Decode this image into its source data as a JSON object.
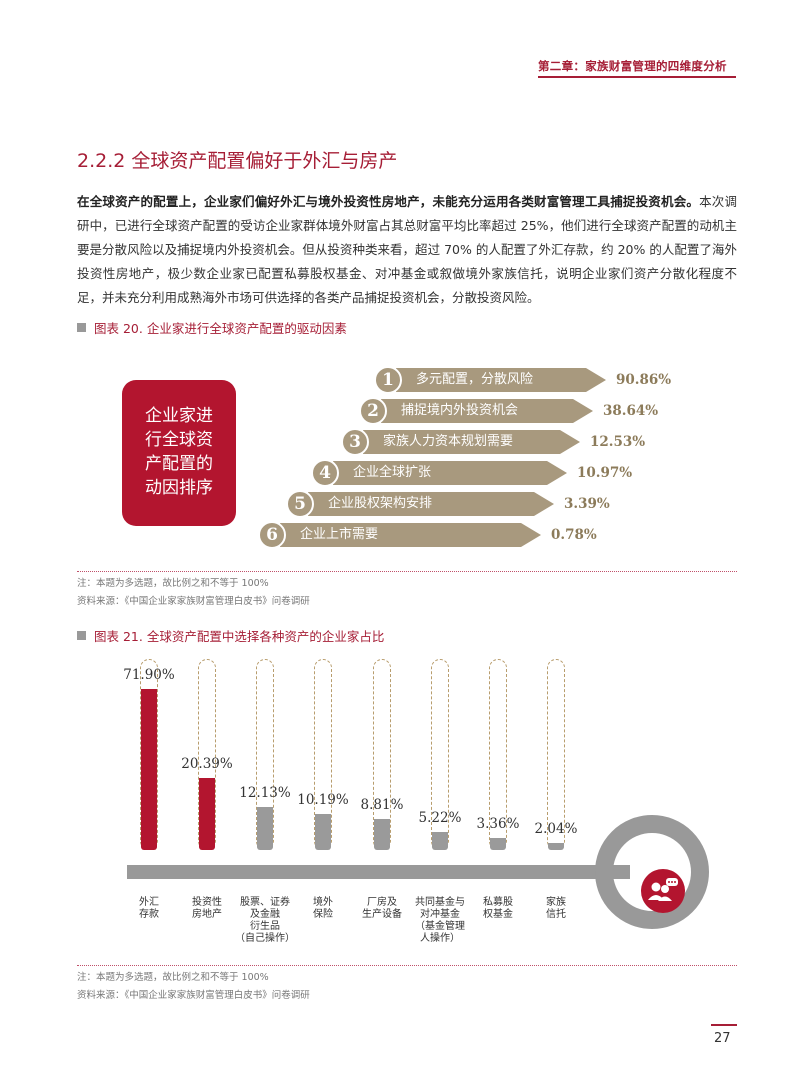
{
  "header": {
    "chapter": "第二章：家族财富管理的四维度分析"
  },
  "section": {
    "title": "2.2.2 全球资产配置偏好于外汇与房产"
  },
  "paragraph": {
    "bold_lead": "在全球资产的配置上，企业家们偏好外汇与境外投资性房地产，未能充分运用各类财富管理工具捕捉投资机会。",
    "body": "本次调研中，已进行全球资产配置的受访企业家群体境外财富占其总财富平均比率超过 25%，他们进行全球资产配置的动机主要是分散风险以及捕捉境内外投资机会。但从投资种类来看，超过 70% 的人配置了外汇存款，约 20% 的人配置了海外投资性房地产，极少数企业家已配置私募股权基金、对冲基金或叙做境外家族信托，说明企业家们资产分散化程度不足，并未充分利用成熟海外市场可供选择的各类产品捕捉投资机会，分散投资风险。"
  },
  "figure20": {
    "title": "图表 20. 企业家进行全球资产配置的驱动因素",
    "box_label": "企业家进行全球资产配置的动因排序",
    "box_lines": [
      "企业家进",
      "行全球资",
      "产配置的",
      "动因排序"
    ],
    "note": "注：本题为多选题，故比例之和不等于 100%",
    "source": "资料来源：《中国企业家家族财富管理白皮书》问卷调研",
    "rows": [
      {
        "num": "1",
        "label": "多元配置，分散风险",
        "pct": "90.86%"
      },
      {
        "num": "2",
        "label": "捕捉境内外投资机会",
        "pct": "38.64%"
      },
      {
        "num": "3",
        "label": "家族人力资本规划需要",
        "pct": "12.53%"
      },
      {
        "num": "4",
        "label": "企业全球扩张",
        "pct": "10.97%"
      },
      {
        "num": "5",
        "label": "企业股权架构安排",
        "pct": "3.39%"
      },
      {
        "num": "6",
        "label": "企业上市需要",
        "pct": "0.78%"
      }
    ]
  },
  "figure21": {
    "title": "图表 21. 全球资产配置中选择各种资产的企业家占比",
    "note": "注：本题为多选题，故比例之和不等于 100%",
    "source": "资料来源：《中国企业家家族财富管理白皮书》问卷调研",
    "icon": "people-chat-icon",
    "colors": {
      "highlight": "#b3152f",
      "normal": "#9a9a9a"
    }
  },
  "chart_data": {
    "type": "bar",
    "categories": [
      "外汇存款",
      "投资性房地产",
      "股票、证券及金融衍生品（自己操作）",
      "境外保险",
      "厂房及生产设备",
      "共同基金与对冲基金（基金管理人操作）",
      "私募股权基金",
      "家族信托"
    ],
    "category_lines": [
      [
        "外汇",
        "存款"
      ],
      [
        "投资性",
        "房地产"
      ],
      [
        "股票、证券",
        "及金融",
        "衍生品",
        "（自己操作）"
      ],
      [
        "境外",
        "保险"
      ],
      [
        "厂房及",
        "生产设备"
      ],
      [
        "共同基金与",
        "对冲基金",
        "（基金管理",
        "人操作）"
      ],
      [
        "私募股",
        "权基金"
      ],
      [
        "家族",
        "信托"
      ]
    ],
    "values": [
      71.9,
      20.39,
      12.13,
      10.19,
      8.81,
      5.22,
      3.36,
      2.04
    ],
    "labels": [
      "71.90%",
      "20.39%",
      "12.13%",
      "10.19%",
      "8.81%",
      "5.22%",
      "3.36%",
      "2.04%"
    ],
    "ylim": [
      0,
      100
    ]
  },
  "page": {
    "number": "27"
  }
}
